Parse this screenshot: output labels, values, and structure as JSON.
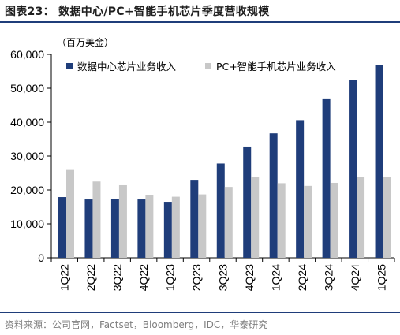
{
  "figure": {
    "title": "图表23： 数据中心/PC+智能手机芯片季度营收规模",
    "source": "资料来源：公司官网，Factset，Bloomberg，IDC，华泰研究"
  },
  "chart_data": {
    "type": "bar",
    "unit_label": "（百万美金）",
    "categories": [
      "1Q22",
      "2Q22",
      "3Q22",
      "4Q22",
      "1Q23",
      "2Q23",
      "3Q23",
      "4Q23",
      "1Q24",
      "2Q24",
      "3Q24",
      "4Q24",
      "1Q25"
    ],
    "series": [
      {
        "name": "数据中心芯片业务收入",
        "color": "#1f3d7a",
        "values": [
          17900,
          17200,
          17400,
          17200,
          16500,
          23000,
          27800,
          32800,
          36700,
          40600,
          47000,
          52400,
          56800
        ]
      },
      {
        "name": "PC+智能手机芯片业务收入",
        "color": "#c8c8c8",
        "values": [
          25900,
          22500,
          21400,
          18600,
          18000,
          18700,
          20900,
          23900,
          22000,
          21200,
          22100,
          23800,
          23900
        ]
      }
    ],
    "ylim": [
      0,
      60000
    ],
    "yticks": [
      "0",
      "10,000",
      "20,000",
      "30,000",
      "40,000",
      "50,000",
      "60,000"
    ],
    "legend_position": "top",
    "grid": false
  }
}
